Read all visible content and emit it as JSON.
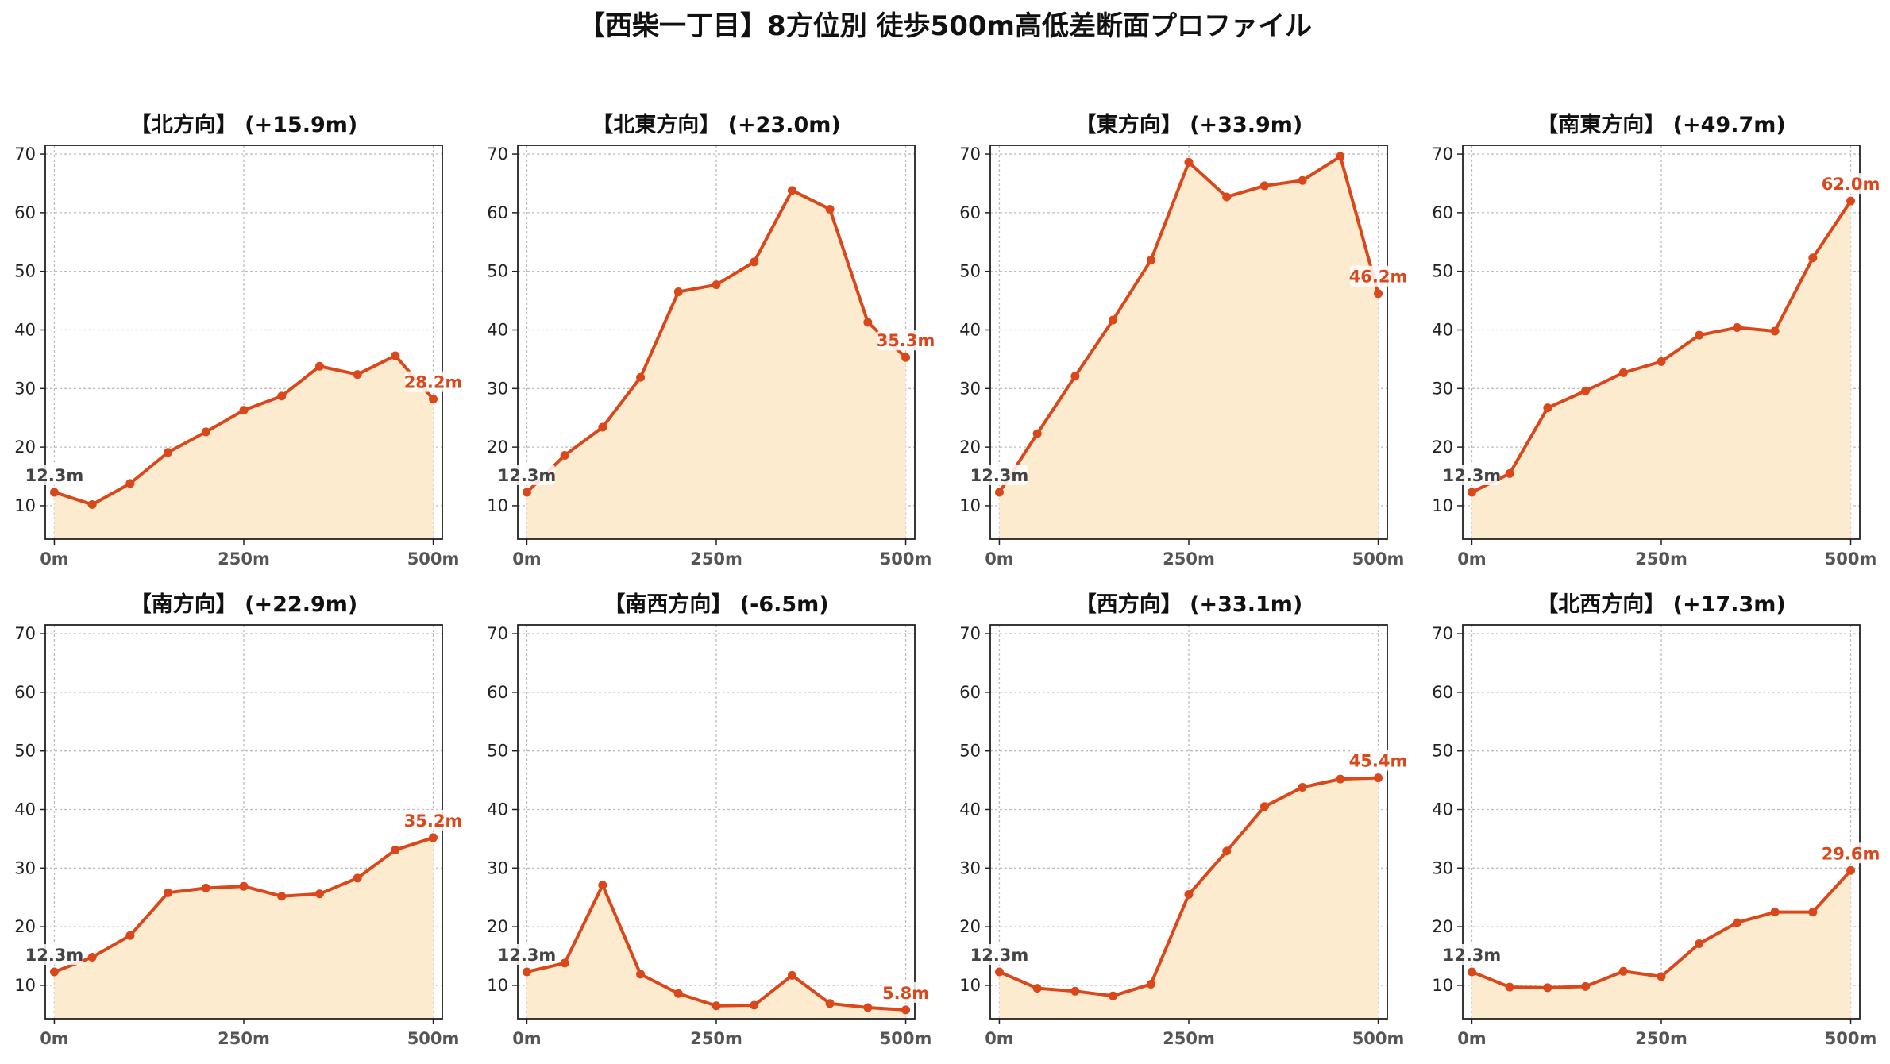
{
  "figure_title": "【西柴一丁目】8方位別 徒歩500m高低差断面プロファイル",
  "colors": {
    "line": "#d9471a",
    "fill": "#fdebd0",
    "grid": "#bdbdbd",
    "start_label": "#444444",
    "end_label": "#d9471a"
  },
  "chart_data": [
    {
      "type": "area",
      "title": "【北方向】 (+15.9m)",
      "x": [
        0,
        50,
        100,
        150,
        200,
        250,
        300,
        350,
        400,
        450,
        500
      ],
      "values": [
        12.3,
        10.2,
        13.8,
        19.1,
        22.6,
        26.3,
        28.7,
        33.8,
        32.4,
        35.6,
        28.2
      ],
      "start_label": "12.3m",
      "end_label": "28.2m",
      "xticks": [
        0,
        250,
        500
      ],
      "xtick_labels": [
        "0m",
        "250m",
        "500m"
      ],
      "yticks": [
        10,
        20,
        30,
        40,
        50,
        60,
        70
      ],
      "ylim": [
        4.3,
        71.5
      ],
      "xlim": [
        -12,
        512
      ],
      "grid": true
    },
    {
      "type": "area",
      "title": "【北東方向】 (+23.0m)",
      "x": [
        0,
        50,
        100,
        150,
        200,
        250,
        300,
        350,
        400,
        450,
        500
      ],
      "values": [
        12.3,
        18.6,
        23.4,
        31.9,
        46.5,
        47.7,
        51.6,
        63.8,
        60.6,
        41.3,
        35.3
      ],
      "start_label": "12.3m",
      "end_label": "35.3m",
      "xticks": [
        0,
        250,
        500
      ],
      "xtick_labels": [
        "0m",
        "250m",
        "500m"
      ],
      "yticks": [
        10,
        20,
        30,
        40,
        50,
        60,
        70
      ],
      "ylim": [
        4.3,
        71.5
      ],
      "xlim": [
        -12,
        512
      ],
      "grid": true
    },
    {
      "type": "area",
      "title": "【東方向】 (+33.9m)",
      "x": [
        0,
        50,
        100,
        150,
        200,
        250,
        300,
        350,
        400,
        450,
        500
      ],
      "values": [
        12.3,
        22.3,
        32.1,
        41.7,
        51.9,
        68.6,
        62.7,
        64.6,
        65.5,
        69.6,
        46.2
      ],
      "start_label": "12.3m",
      "end_label": "46.2m",
      "xticks": [
        0,
        250,
        500
      ],
      "xtick_labels": [
        "0m",
        "250m",
        "500m"
      ],
      "yticks": [
        10,
        20,
        30,
        40,
        50,
        60,
        70
      ],
      "ylim": [
        4.3,
        71.5
      ],
      "xlim": [
        -12,
        512
      ],
      "grid": true
    },
    {
      "type": "area",
      "title": "【南東方向】 (+49.7m)",
      "x": [
        0,
        50,
        100,
        150,
        200,
        250,
        300,
        350,
        400,
        450,
        500
      ],
      "values": [
        12.3,
        15.5,
        26.7,
        29.6,
        32.7,
        34.6,
        39.1,
        40.4,
        39.8,
        52.3,
        62.0
      ],
      "start_label": "12.3m",
      "end_label": "62.0m",
      "xticks": [
        0,
        250,
        500
      ],
      "xtick_labels": [
        "0m",
        "250m",
        "500m"
      ],
      "yticks": [
        10,
        20,
        30,
        40,
        50,
        60,
        70
      ],
      "ylim": [
        4.3,
        71.5
      ],
      "xlim": [
        -12,
        512
      ],
      "grid": true
    },
    {
      "type": "area",
      "title": "【南方向】 (+22.9m)",
      "x": [
        0,
        50,
        100,
        150,
        200,
        250,
        300,
        350,
        400,
        450,
        500
      ],
      "values": [
        12.3,
        14.8,
        18.5,
        25.8,
        26.6,
        26.9,
        25.2,
        25.6,
        28.3,
        33.1,
        35.2
      ],
      "start_label": "12.3m",
      "end_label": "35.2m",
      "xticks": [
        0,
        250,
        500
      ],
      "xtick_labels": [
        "0m",
        "250m",
        "500m"
      ],
      "yticks": [
        10,
        20,
        30,
        40,
        50,
        60,
        70
      ],
      "ylim": [
        4.3,
        71.5
      ],
      "xlim": [
        -12,
        512
      ],
      "grid": true
    },
    {
      "type": "area",
      "title": "【南西方向】 (-6.5m)",
      "x": [
        0,
        50,
        100,
        150,
        200,
        250,
        300,
        350,
        400,
        450,
        500
      ],
      "values": [
        12.3,
        13.8,
        27.1,
        11.9,
        8.6,
        6.5,
        6.6,
        11.7,
        6.9,
        6.2,
        5.8
      ],
      "start_label": "12.3m",
      "end_label": "5.8m",
      "xticks": [
        0,
        250,
        500
      ],
      "xtick_labels": [
        "0m",
        "250m",
        "500m"
      ],
      "yticks": [
        10,
        20,
        30,
        40,
        50,
        60,
        70
      ],
      "ylim": [
        4.3,
        71.5
      ],
      "xlim": [
        -12,
        512
      ],
      "grid": true
    },
    {
      "type": "area",
      "title": "【西方向】 (+33.1m)",
      "x": [
        0,
        50,
        100,
        150,
        200,
        250,
        300,
        350,
        400,
        450,
        500
      ],
      "values": [
        12.3,
        9.5,
        9.0,
        8.2,
        10.2,
        25.5,
        32.9,
        40.5,
        43.8,
        45.2,
        45.4
      ],
      "start_label": "12.3m",
      "end_label": "45.4m",
      "xticks": [
        0,
        250,
        500
      ],
      "xtick_labels": [
        "0m",
        "250m",
        "500m"
      ],
      "yticks": [
        10,
        20,
        30,
        40,
        50,
        60,
        70
      ],
      "ylim": [
        4.3,
        71.5
      ],
      "xlim": [
        -12,
        512
      ],
      "grid": true
    },
    {
      "type": "area",
      "title": "【北西方向】 (+17.3m)",
      "x": [
        0,
        50,
        100,
        150,
        200,
        250,
        300,
        350,
        400,
        450,
        500
      ],
      "values": [
        12.3,
        9.7,
        9.6,
        9.8,
        12.4,
        11.5,
        17.1,
        20.7,
        22.5,
        22.5,
        29.6
      ],
      "start_label": "12.3m",
      "end_label": "29.6m",
      "xticks": [
        0,
        250,
        500
      ],
      "xtick_labels": [
        "0m",
        "250m",
        "500m"
      ],
      "yticks": [
        10,
        20,
        30,
        40,
        50,
        60,
        70
      ],
      "ylim": [
        4.3,
        71.5
      ],
      "xlim": [
        -12,
        512
      ],
      "grid": true
    }
  ]
}
